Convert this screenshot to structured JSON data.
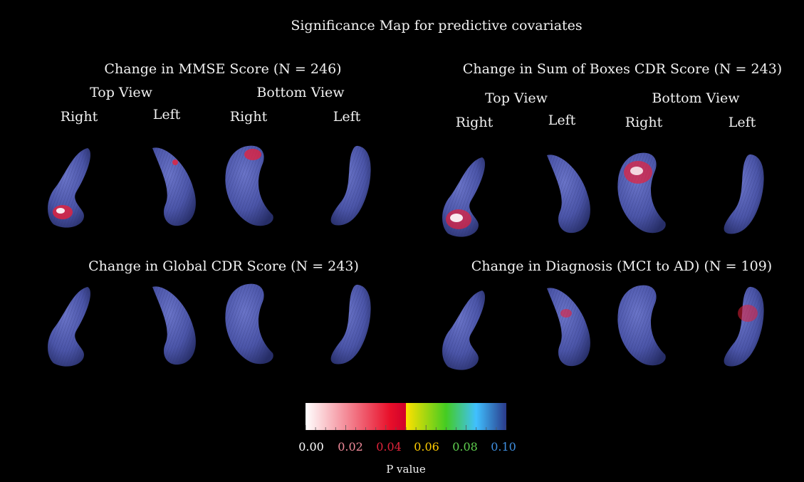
{
  "title": "Significance Map for predictive covariates",
  "panels": {
    "mmse": {
      "heading": "Change in MMSE Score (N = 246)",
      "top_view": "Top View",
      "bottom_view": "Bottom View",
      "right_top": "Right",
      "left_top": "Left",
      "right_bottom": "Right",
      "left_bottom": "Left"
    },
    "cdr_sb": {
      "heading": "Change in Sum of Boxes CDR Score (N = 243)",
      "top_view": "Top View",
      "bottom_view": "Bottom View",
      "right_top": "Right",
      "left_top": "Left",
      "right_bottom": "Right",
      "left_bottom": "Left"
    },
    "global_cdr": {
      "heading": "Change in Global CDR Score (N = 243)"
    },
    "diagnosis": {
      "heading": "Change in Diagnosis (MCI to AD) (N = 109)"
    }
  },
  "colorbar": {
    "label": "P value",
    "ticks": [
      "0.00",
      "0.02",
      "0.04",
      "0.06",
      "0.08",
      "0.10"
    ],
    "tick_colors": [
      "#ffffff",
      "#f28b9a",
      "#e0233a",
      "#ffcc00",
      "#5fcf4f",
      "#3f8fe0"
    ],
    "gradient": [
      "#ffffff",
      "#e8102a",
      "#d0002a",
      "#ffe000",
      "#44cc22",
      "#40c0ff",
      "#2a3a8a"
    ]
  },
  "colors": {
    "background": "#000000",
    "surface": "#4b55a8",
    "significant_strong": "#ffffff",
    "significant_mid": "#e8203a",
    "significant_weak": "#ffcc33"
  }
}
